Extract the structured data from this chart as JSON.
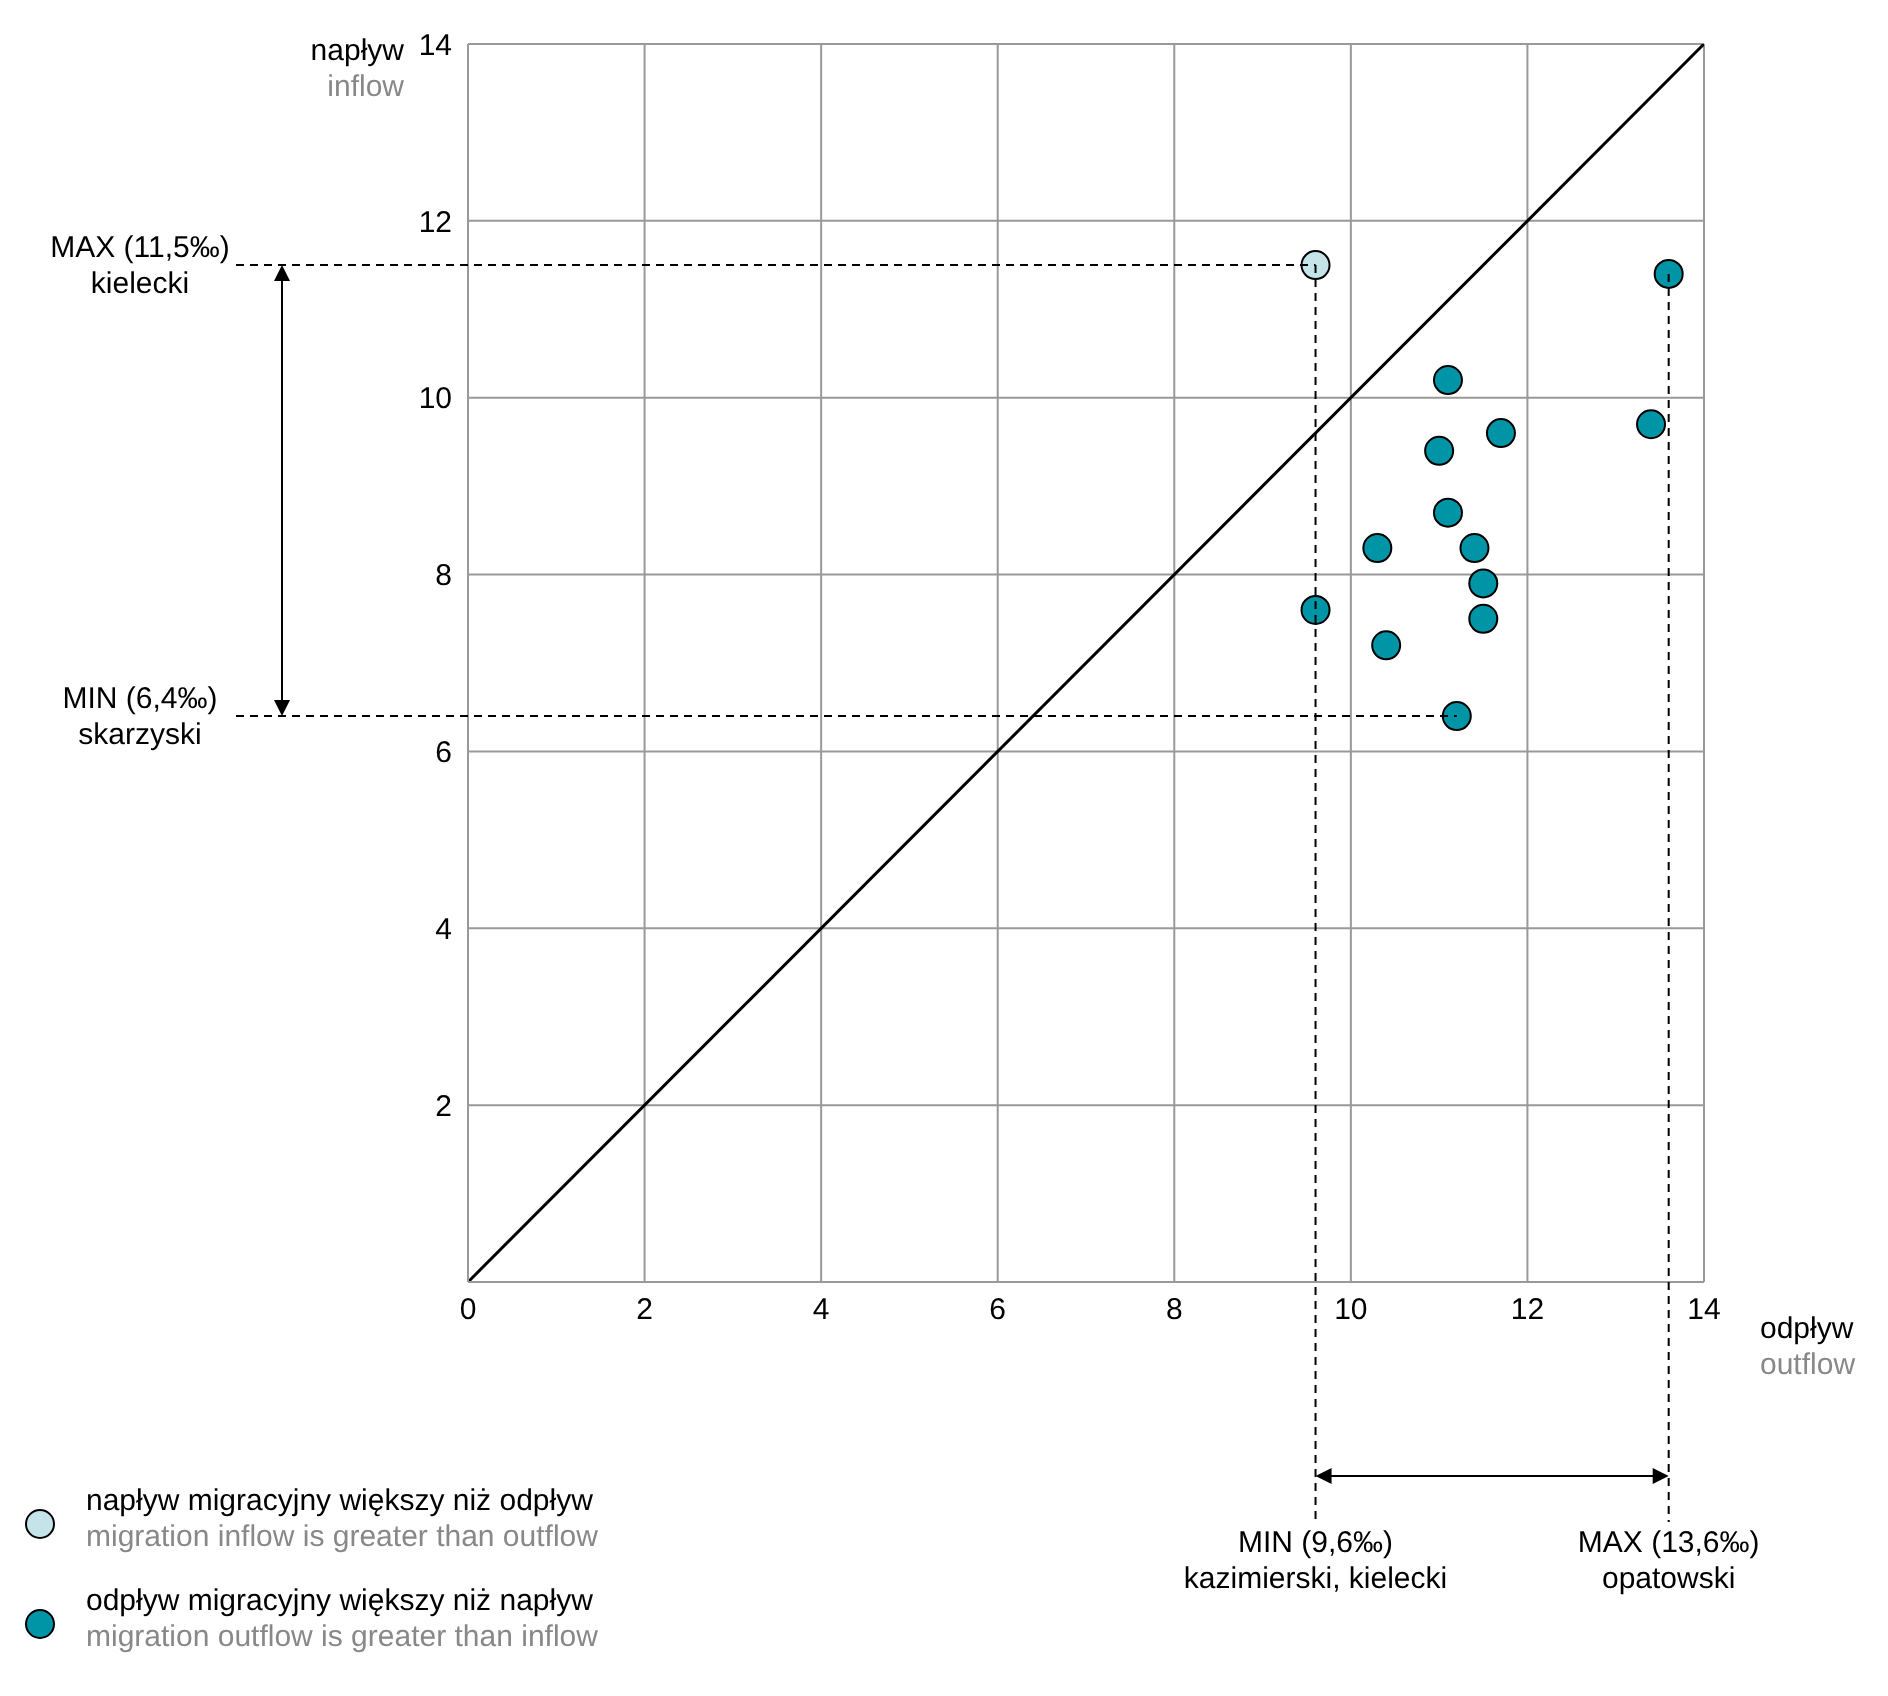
{
  "chart_data": {
    "type": "scatter",
    "xlabel": "odpływ\noutflow",
    "ylabel": "napływ\ninflow",
    "xlim": [
      0,
      14
    ],
    "xticks": [
      0,
      2,
      4,
      6,
      8,
      10,
      12,
      14
    ],
    "ylim": [
      0,
      14
    ],
    "yticks": [
      {
        "value": 0,
        "label": null
      },
      2,
      4,
      6,
      8,
      10,
      12,
      14
    ],
    "grid": true,
    "legend": "bottom left",
    "marker": "circle",
    "series": [
      {
        "name": "napływ migracyjny większy niż odpływ\nmigration inflow is greater than outflow",
        "color": "#c4e4ea",
        "x": [
          9.6
        ],
        "values": [
          11.5
        ]
      },
      {
        "name": "odpływ migracyjny większy niż napływ\nmigration outflow is greater than inflow",
        "color": "#0095a6",
        "x": [
          13.6,
          13.4,
          11.1,
          11.7,
          11.0,
          11.1,
          10.3,
          11.4,
          11.5,
          11.5,
          9.6,
          10.4,
          11.2
        ],
        "values": [
          11.4,
          9.7,
          10.2,
          9.6,
          9.4,
          8.7,
          8.3,
          8.3,
          7.9,
          7.5,
          7.6,
          7.2,
          6.4
        ]
      },
      {
        "type": "line",
        "color": "#000000",
        "marker": "none",
        "x": [
          0,
          14
        ],
        "values": [
          0,
          14
        ]
      }
    ],
    "annotations": [
      {
        "text": "MAX (11,5‰)\nkielecki",
        "x": 9.6,
        "y": 11.5
      },
      {
        "text": "MIN (6,4‰)\nskarzyski",
        "x": 11.2,
        "y": 6.4
      },
      {
        "text": "MIN (9,6‰)\nkazimierski, kielecki",
        "x": 9.6,
        "y": 11.5
      },
      {
        "text": "MAX (13,6‰)\nopatowski",
        "x": 13.6,
        "y": 11.4
      }
    ]
  }
}
